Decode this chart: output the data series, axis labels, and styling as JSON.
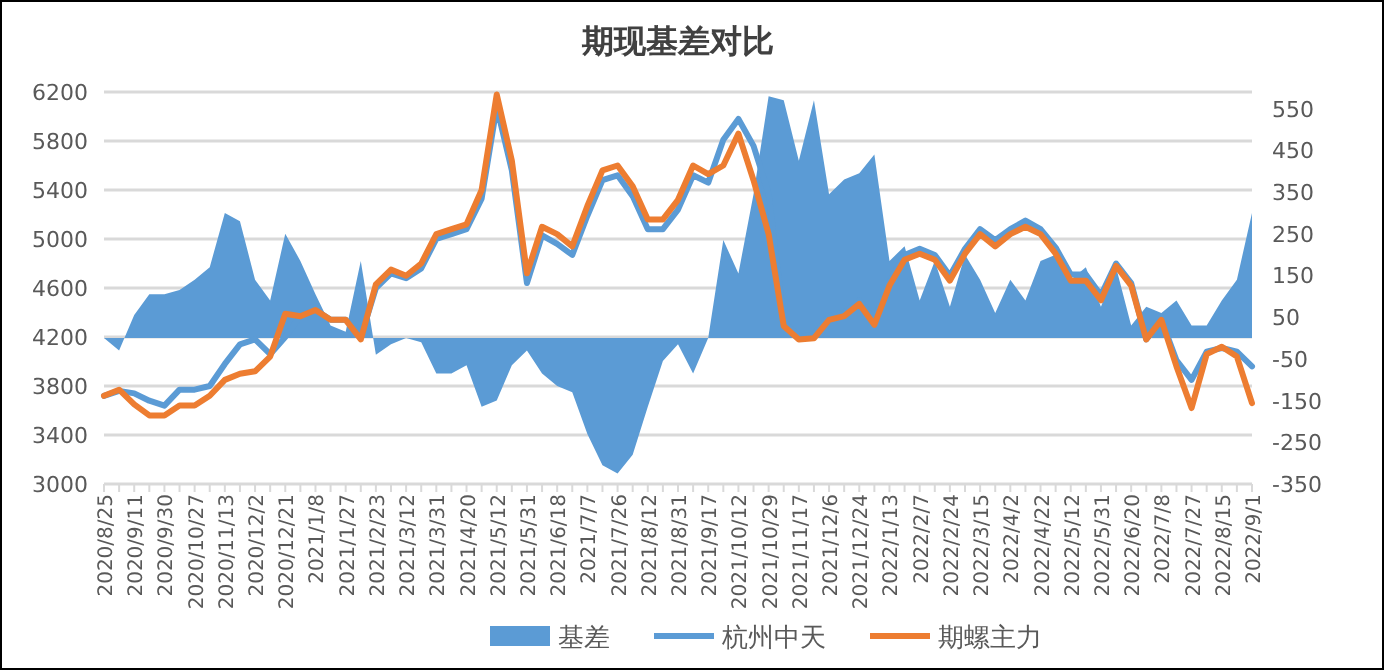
{
  "chart_data": {
    "type": "line",
    "title": "期现基差对比",
    "categories": [
      "2020/8/25",
      null,
      "2020/9/11",
      null,
      "2020/9/30",
      null,
      "2020/10/27",
      null,
      "2020/11/13",
      null,
      "2020/12/2",
      null,
      "2020/12/21",
      null,
      "2021/1/8",
      null,
      "2021/1/27",
      null,
      "2021/2/23",
      null,
      "2021/3/12",
      null,
      "2021/3/31",
      null,
      "2021/4/20",
      null,
      "2021/5/12",
      null,
      "2021/5/31",
      null,
      "2021/6/18",
      null,
      "2021/7/7",
      null,
      "2021/7/26",
      null,
      "2021/8/12",
      null,
      "2021/8/31",
      null,
      "2021/9/17",
      null,
      "2021/10/12",
      null,
      "2021/10/29",
      null,
      "2021/11/17",
      null,
      "2021/12/6",
      null,
      "2021/12/24",
      null,
      "2022/1/13",
      null,
      "2022/2/7",
      null,
      "2022/2/24",
      null,
      "2022/3/15",
      null,
      "2022/4/2",
      null,
      "2022/4/22",
      null,
      "2022/5/12",
      null,
      "2022/5/31",
      null,
      "2022/6/20",
      null,
      "2022/7/8",
      null,
      "2022/7/27",
      null,
      "2022/8/15",
      null,
      "2022/9/1"
    ],
    "series": [
      {
        "name": "基差",
        "type": "area",
        "axis": "y2",
        "color": "#5b9bd5",
        "values": [
          0,
          -30,
          55,
          105,
          105,
          115,
          140,
          170,
          300,
          280,
          140,
          90,
          250,
          185,
          105,
          30,
          15,
          185,
          -40,
          -15,
          0,
          -10,
          -85,
          -85,
          -65,
          -165,
          -150,
          -65,
          -30,
          -85,
          -115,
          -130,
          -230,
          -305,
          -325,
          -280,
          -165,
          -55,
          -15,
          -85,
          0,
          235,
          155,
          345,
          580,
          570,
          425,
          570,
          345,
          380,
          395,
          440,
          185,
          220,
          90,
          185,
          75,
          200,
          140,
          60,
          140,
          90,
          185,
          200,
          140,
          170,
          75,
          170,
          30,
          75,
          60,
          90,
          30,
          30,
          90,
          140,
          300
        ]
      },
      {
        "name": "杭州中天",
        "axis": "y",
        "color": "#5b9bd5",
        "values": [
          3720,
          3760,
          3740,
          3680,
          3640,
          3770,
          3770,
          3800,
          3980,
          4140,
          4180,
          4060,
          4200,
          4370,
          4420,
          4340,
          4340,
          4200,
          4600,
          4720,
          4680,
          4760,
          5000,
          5040,
          5080,
          5330,
          6080,
          5560,
          4640,
          5030,
          4960,
          4870,
          5190,
          5480,
          5520,
          5350,
          5080,
          5080,
          5240,
          5520,
          5460,
          5810,
          5980,
          5760,
          5370,
          4330,
          4200,
          4220,
          4370,
          4400,
          4500,
          4340,
          4650,
          4870,
          4920,
          4870,
          4700,
          4920,
          5080,
          4990,
          5080,
          5150,
          5080,
          4930,
          4710,
          4710,
          4540,
          4800,
          4640,
          4180,
          4340,
          4010,
          3850,
          4080,
          4110,
          4080,
          3960
        ]
      },
      {
        "name": "期螺主力",
        "axis": "y",
        "color": "#ed7d31",
        "values": [
          3720,
          3770,
          3650,
          3560,
          3560,
          3640,
          3640,
          3720,
          3850,
          3900,
          3920,
          4040,
          4390,
          4370,
          4420,
          4340,
          4340,
          4180,
          4630,
          4750,
          4700,
          4800,
          5040,
          5080,
          5120,
          5400,
          6180,
          5640,
          4720,
          5100,
          5040,
          4940,
          5270,
          5560,
          5600,
          5430,
          5160,
          5160,
          5320,
          5600,
          5530,
          5600,
          5860,
          5480,
          5040,
          4290,
          4180,
          4190,
          4340,
          4370,
          4470,
          4300,
          4620,
          4830,
          4880,
          4830,
          4660,
          4880,
          5040,
          4940,
          5040,
          5100,
          5040,
          4880,
          4660,
          4660,
          4500,
          4780,
          4620,
          4180,
          4340,
          3960,
          3620,
          4060,
          4120,
          4040,
          3660
        ]
      }
    ],
    "ylim": [
      3000,
      6200
    ],
    "yticks": [
      3000,
      3400,
      3800,
      4200,
      4600,
      5000,
      5400,
      5800,
      6200
    ],
    "y2lim": [
      -350,
      590
    ],
    "y2ticks": [
      -350,
      -250,
      -150,
      -50,
      50,
      150,
      250,
      350,
      450,
      550
    ],
    "grid": "y",
    "legend": "bottom",
    "marker": "none",
    "line_style": "solid"
  }
}
